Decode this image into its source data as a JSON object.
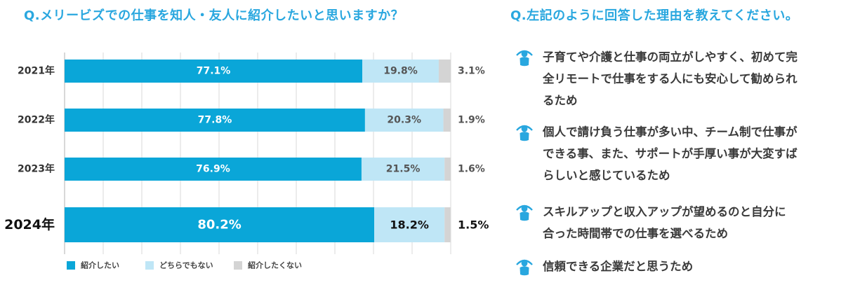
{
  "colors": {
    "accent": "#29a7df",
    "series": [
      "#0aa6d8",
      "#bfe6f6",
      "#d4d4d4"
    ]
  },
  "question_left": "Q.メリービズでの仕事を知人・友人に紹介したいと思いますか？",
  "question_right": "Q.左記のように回答した理由を教えてください。",
  "chart_data": {
    "type": "bar",
    "orientation": "horizontal",
    "stacked": true,
    "categories": [
      "2021年",
      "2022年",
      "2023年",
      "2024年"
    ],
    "series": [
      {
        "name": "紹介したい",
        "values": [
          77.1,
          77.8,
          76.9,
          80.2
        ],
        "labels": [
          "77.1%",
          "77.8%",
          "76.9%",
          "80.2%"
        ]
      },
      {
        "name": "どちらでもない",
        "values": [
          19.8,
          20.3,
          21.5,
          18.2
        ],
        "labels": [
          "19.8%",
          "20.3%",
          "21.5%",
          "18.2%"
        ]
      },
      {
        "name": "紹介したくない",
        "values": [
          3.1,
          1.9,
          1.6,
          1.5
        ],
        "labels": [
          "3.1%",
          "1.9%",
          "1.6%",
          "1.5%"
        ]
      }
    ],
    "xlim": [
      0,
      100
    ],
    "grid": true,
    "legend": "bottom-left",
    "highlight_category": "2024年"
  },
  "reasons": [
    {
      "icon": "person-icon",
      "lines": [
        "子育てや介護と仕事の両立がしやすく、初めて完",
        "全リモートで仕事をする人にも安心して勧められ",
        "るため"
      ]
    },
    {
      "icon": "person-icon",
      "lines": [
        "個人で請け負う仕事が多い中、チーム制で仕事が",
        "できる事、また、サポートが手厚い事が大変すば",
        "らしいと感じているため"
      ]
    },
    {
      "icon": "person-icon",
      "lines": [
        "スキルアップと収入アップが望めるのと自分に",
        "合った時間帯での仕事を選べるため"
      ]
    },
    {
      "icon": "person-icon",
      "lines": [
        "信頼できる企業だと思うため"
      ]
    }
  ]
}
